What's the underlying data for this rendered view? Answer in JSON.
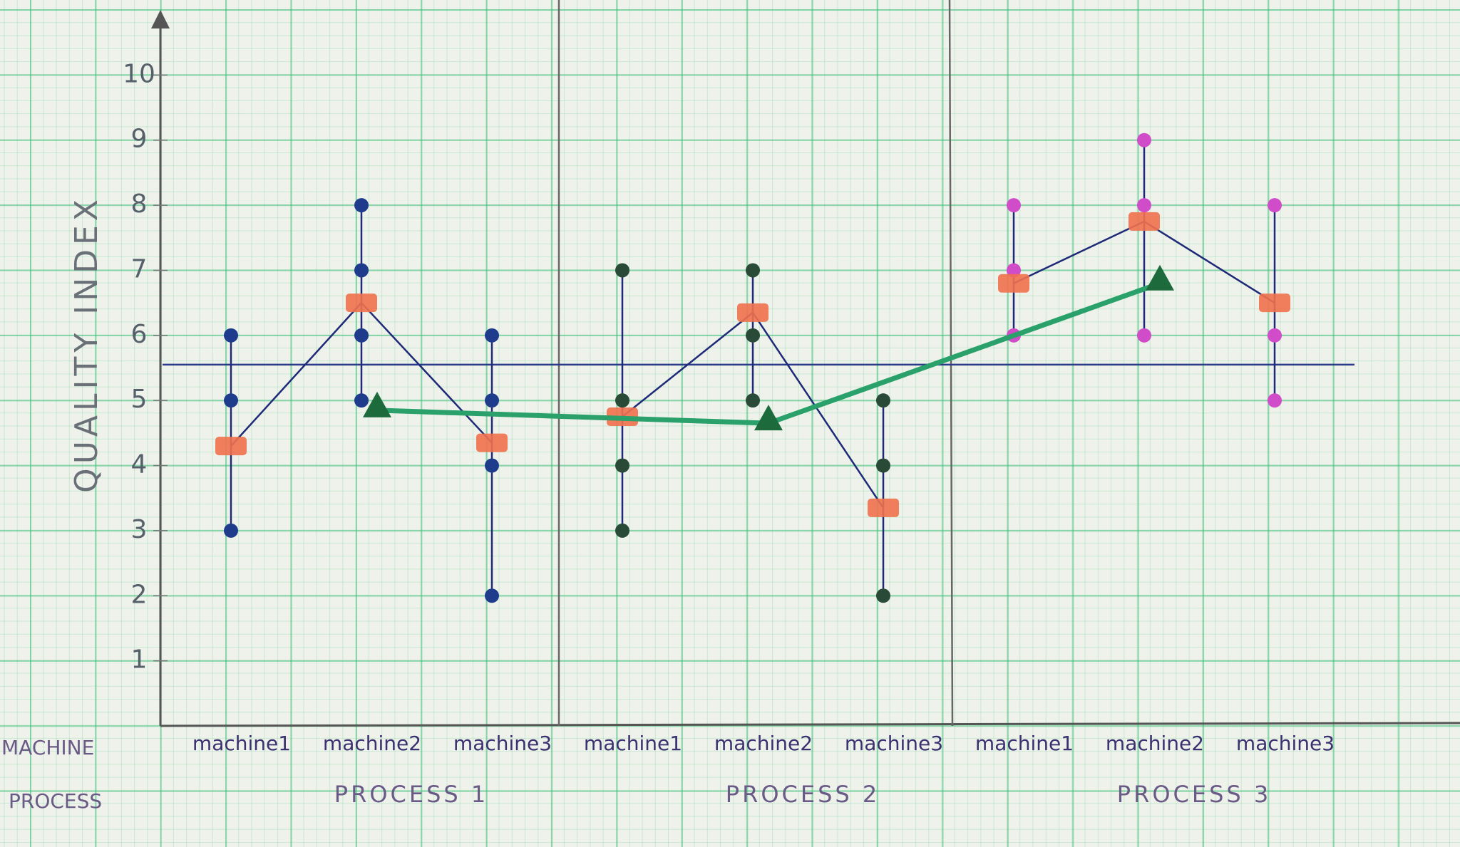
{
  "chart_data": {
    "type": "multi-vari",
    "y_label": "QUALITY INDEX",
    "row_labels": {
      "machine": "MACHINE",
      "process": "PROCESS"
    },
    "ylim": [
      0,
      11
    ],
    "yticks": [
      1,
      2,
      3,
      4,
      5,
      6,
      7,
      8,
      9,
      10
    ],
    "machine_mean_color": "#f0714e",
    "machine_line_color": "#1e2a78",
    "process_mean_color": "#1d6b3c",
    "process_line_color": "#2aa06a",
    "grand_mean": 5.55,
    "processes": [
      {
        "name": "PROCESS 1",
        "color": "#1f3c8c",
        "mean": 4.85,
        "machines": [
          {
            "name": "machine1",
            "values": [
              6,
              5,
              3
            ],
            "mean": 4.3
          },
          {
            "name": "machine2",
            "values": [
              8,
              7,
              6,
              5
            ],
            "mean": 6.5
          },
          {
            "name": "machine3",
            "values": [
              6,
              5,
              4,
              2
            ],
            "mean": 4.35
          }
        ]
      },
      {
        "name": "PROCESS 2",
        "color": "#2a4a38",
        "mean": 4.65,
        "machines": [
          {
            "name": "machine1",
            "values": [
              7,
              5,
              4,
              3
            ],
            "mean": 4.75
          },
          {
            "name": "machine2",
            "values": [
              7,
              6,
              5
            ],
            "mean": 6.35
          },
          {
            "name": "machine3",
            "values": [
              5,
              4,
              2
            ],
            "mean": 3.35
          }
        ]
      },
      {
        "name": "PROCESS 3",
        "color": "#d04cc8",
        "mean": 6.8,
        "machines": [
          {
            "name": "machine1",
            "values": [
              8,
              7,
              6
            ],
            "mean": 6.8
          },
          {
            "name": "machine2",
            "values": [
              9,
              8,
              6
            ],
            "mean": 7.75
          },
          {
            "name": "machine3",
            "values": [
              8,
              6,
              5
            ],
            "mean": 6.5
          }
        ]
      }
    ]
  }
}
